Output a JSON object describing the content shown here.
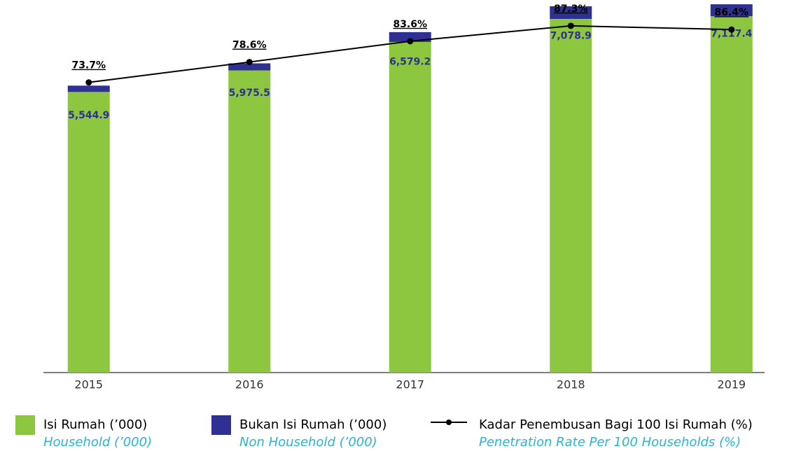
{
  "chart_data": {
    "type": "bar",
    "categories": [
      "2015",
      "2016",
      "2017",
      "2018",
      "2019"
    ],
    "series": [
      {
        "name": "Isi Rumah (’000)",
        "name_en": "Household (’000)",
        "color": "#8dc63f",
        "values": [
          5422.9,
          5839.5,
          6389.2,
          6834.9,
          6887.4
        ]
      },
      {
        "name": "Bukan Isi Rumah (’000)",
        "name_en": "Non Household (’000)",
        "color": "#2e3192",
        "values": [
          122,
          136,
          190,
          244,
          230
        ]
      },
      {
        "name": "Kadar Penembusan Bagi 100 Isi Rumah (%)",
        "name_en": "Penetration Rate Per 100 Households (%)",
        "type": "line",
        "axis": "y2",
        "color": "#000000",
        "values": [
          73.7,
          78.6,
          83.6,
          87.3,
          86.4
        ],
        "value_labels": [
          "73.7%",
          "78.6%",
          "83.6%",
          "87.3%",
          "86.4%"
        ]
      }
    ],
    "totals": [
      5544.9,
      5975.5,
      6579.2,
      7078.9,
      7117.4
    ],
    "total_labels": [
      "5,544.9",
      "5,975.5",
      "6,579.2",
      "7,078.9",
      "7,117.4"
    ],
    "ylim": [
      900,
      8100
    ],
    "y2lim": [
      4,
      93.5
    ]
  }
}
